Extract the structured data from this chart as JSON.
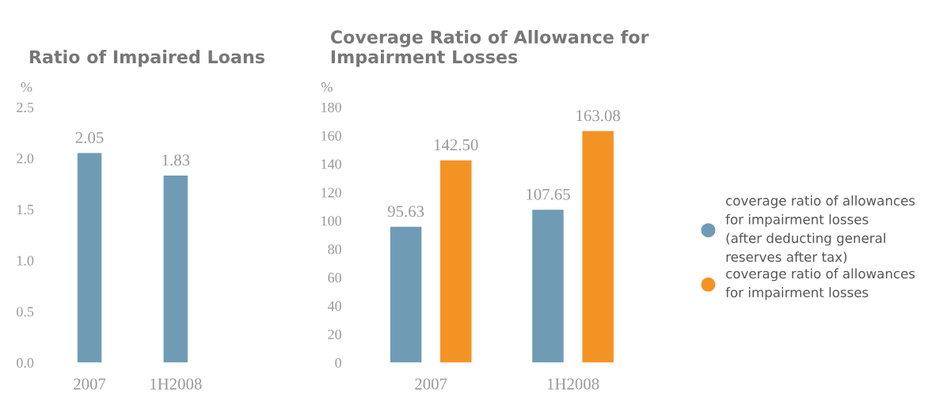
{
  "chart_data": [
    {
      "type": "bar",
      "title": "Ratio of Impaired Loans",
      "ylabel": "%",
      "categories": [
        "2007",
        "1H2008"
      ],
      "series": [
        {
          "color": "#6f9bb5",
          "values": [
            2.05,
            1.83
          ]
        }
      ],
      "ylim": [
        0,
        2.5
      ],
      "yticks": [
        {
          "value": 0,
          "label": "0.0"
        },
        0.5,
        {
          "value": 1,
          "label": "1.0"
        },
        1.5,
        {
          "value": 2,
          "label": "2.0"
        },
        2.5
      ],
      "data_labels": true,
      "legend": false,
      "grid": false
    },
    {
      "type": "bar",
      "title": "Coverage Ratio of Allowance for\nImpairment Losses",
      "ylabel": "%",
      "categories": [
        "2007",
        "1H2008"
      ],
      "series": [
        {
          "name": "coverage ratio of allowances\nfor impairment losses\n(after deducting general\nreserves after tax)",
          "color": "#6f9bb5",
          "values": [
            95.63,
            107.65
          ],
          "value_labels": [
            "95.63",
            "107.65"
          ]
        },
        {
          "name": "coverage ratio of allowances\nfor impairment losses",
          "color": "#f39323",
          "values": [
            142.5,
            163.08
          ],
          "value_labels": [
            "142.50",
            "163.08"
          ]
        }
      ],
      "ylim": [
        0,
        180
      ],
      "yticks": [
        0,
        20,
        40,
        60,
        80,
        100,
        120,
        140,
        160,
        180
      ],
      "legend": "right",
      "grid": false
    }
  ]
}
